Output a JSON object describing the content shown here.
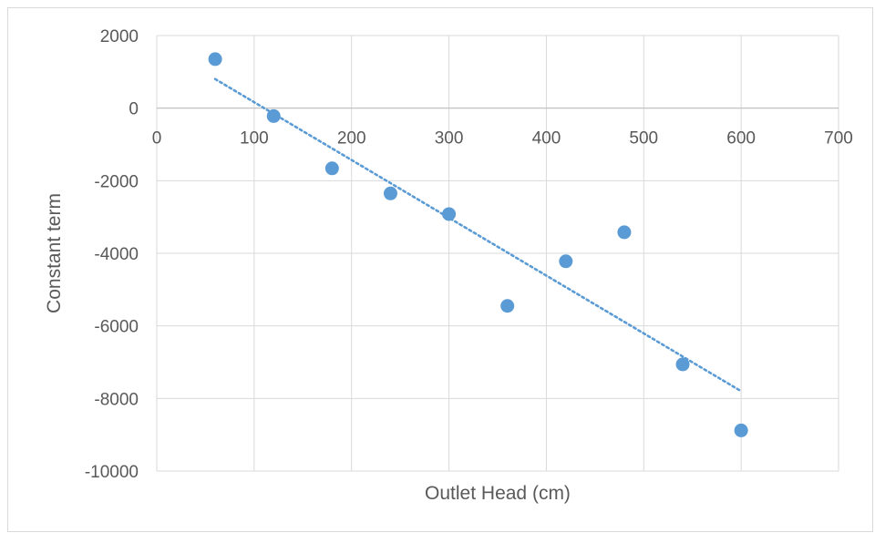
{
  "chart_data": {
    "type": "scatter",
    "title": "",
    "xlabel": "Outlet Head (cm)",
    "ylabel": "Constant term",
    "xlim": [
      0,
      700
    ],
    "ylim": [
      -10000,
      2000
    ],
    "xticks": [
      0,
      100,
      200,
      300,
      400,
      500,
      600,
      700
    ],
    "yticks": [
      2000,
      0,
      -2000,
      -4000,
      -6000,
      -8000,
      -10000
    ],
    "grid": true,
    "legend": "none",
    "point_color": "#5b9bd5",
    "trendline": {
      "style": "dotted",
      "color": "#5b9bd5",
      "x": [
        60,
        600
      ],
      "y": [
        800,
        -7800
      ]
    },
    "series": [
      {
        "x": [
          60,
          120,
          180,
          240,
          300,
          360,
          420,
          480,
          540,
          600
        ],
        "y": [
          1350,
          -220,
          -1660,
          -2350,
          -2920,
          -5450,
          -4220,
          -3420,
          -7060,
          -8880
        ]
      }
    ]
  }
}
